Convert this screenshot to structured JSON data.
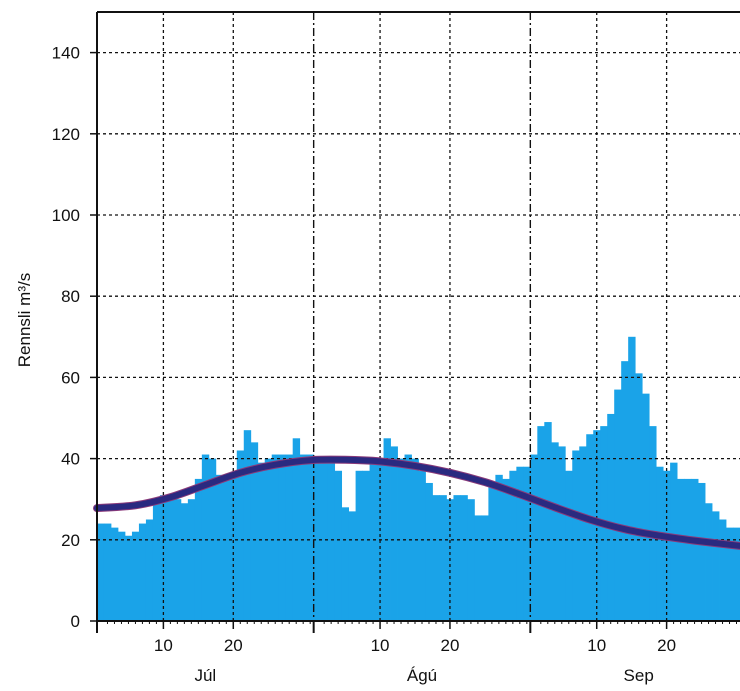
{
  "chart_data": {
    "type": "bar",
    "ylabel": "Rennsli  m³/s",
    "ylim": [
      0,
      150
    ],
    "yticks": [
      0,
      20,
      40,
      60,
      80,
      100,
      120,
      140
    ],
    "x_start": "07-01",
    "x_end": "09-30",
    "months": [
      {
        "label": "Júl",
        "day_ticks": [
          "10",
          "20"
        ]
      },
      {
        "label": "Ágú",
        "day_ticks": [
          "10",
          "20"
        ]
      },
      {
        "label": "Sep",
        "day_ticks": [
          "10",
          "20"
        ]
      }
    ],
    "grid": true,
    "colors": {
      "bars": "#1aa3e8",
      "curve": "#2a2a80",
      "curve_edge": "#8a3a7a"
    },
    "series": [
      {
        "type": "bar",
        "x": [
          "07-01",
          "07-02",
          "07-03",
          "07-04",
          "07-05",
          "07-06",
          "07-07",
          "07-08",
          "07-09",
          "07-10",
          "07-11",
          "07-12",
          "07-13",
          "07-14",
          "07-15",
          "07-16",
          "07-17",
          "07-18",
          "07-19",
          "07-20",
          "07-21",
          "07-22",
          "07-23",
          "07-24",
          "07-25",
          "07-26",
          "07-27",
          "07-28",
          "07-29",
          "07-30",
          "07-31",
          "08-01",
          "08-02",
          "08-03",
          "08-04",
          "08-05",
          "08-06",
          "08-07",
          "08-08",
          "08-09",
          "08-10",
          "08-11",
          "08-12",
          "08-13",
          "08-14",
          "08-15",
          "08-16",
          "08-17",
          "08-18",
          "08-19",
          "08-20",
          "08-21",
          "08-22",
          "08-23",
          "08-24",
          "08-25",
          "08-26",
          "08-27",
          "08-28",
          "08-29",
          "08-30",
          "08-31",
          "09-01",
          "09-02",
          "09-03",
          "09-04",
          "09-05",
          "09-06",
          "09-07",
          "09-08",
          "09-09",
          "09-10",
          "09-11",
          "09-12",
          "09-13",
          "09-14",
          "09-15",
          "09-16",
          "09-17",
          "09-18",
          "09-19",
          "09-20",
          "09-21",
          "09-22",
          "09-23",
          "09-24",
          "09-25",
          "09-26",
          "09-27",
          "09-28",
          "09-29",
          "09-30"
        ],
        "values": [
          24,
          24,
          23,
          22,
          21,
          22,
          24,
          25,
          30,
          31,
          30,
          30,
          29,
          30,
          35,
          41,
          40,
          36,
          35,
          36,
          42,
          47,
          44,
          39,
          40,
          41,
          41,
          41,
          45,
          41,
          41,
          40,
          40,
          40,
          37,
          28,
          27,
          37,
          37,
          40,
          40,
          45,
          43,
          40,
          41,
          40,
          37,
          34,
          31,
          31,
          30,
          31,
          31,
          30,
          26,
          26,
          34,
          36,
          35,
          37,
          38,
          38,
          41,
          48,
          49,
          44,
          43,
          37,
          42,
          43,
          46,
          47,
          48,
          51,
          57,
          64,
          70,
          61,
          56,
          48,
          38,
          37,
          39,
          35,
          35,
          35,
          34,
          29,
          27,
          25,
          23,
          23
        ]
      },
      {
        "type": "line",
        "x": [
          "07-01",
          "07-06",
          "07-11",
          "07-16",
          "07-21",
          "07-26",
          "07-31",
          "08-05",
          "08-10",
          "08-15",
          "08-20",
          "08-25",
          "08-30",
          "09-04",
          "09-09",
          "09-14",
          "09-19",
          "09-24",
          "09-30"
        ],
        "values": [
          27.8,
          28.5,
          30.5,
          33.5,
          36.5,
          38.5,
          39.6,
          39.7,
          39.3,
          38.2,
          36.5,
          34.2,
          31.2,
          28,
          25,
          22.6,
          21,
          19.8,
          18.5
        ]
      }
    ]
  }
}
